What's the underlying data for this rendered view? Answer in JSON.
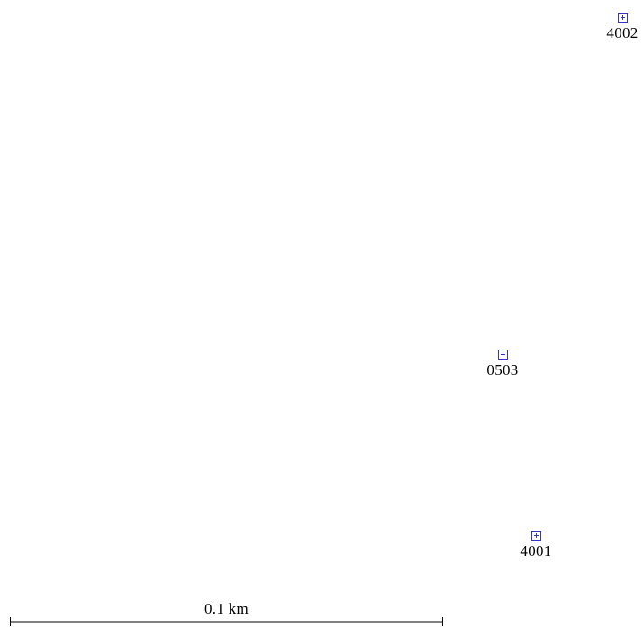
{
  "map": {
    "markers": [
      {
        "id": "4002",
        "label": "4002",
        "icon": "survey-point-icon"
      },
      {
        "id": "0503",
        "label": "0503",
        "icon": "survey-point-icon"
      },
      {
        "id": "4001",
        "label": "4001",
        "icon": "survey-point-icon"
      }
    ],
    "marker_color": "#3333cc",
    "scale_bar": {
      "label": "0.1 km"
    }
  }
}
